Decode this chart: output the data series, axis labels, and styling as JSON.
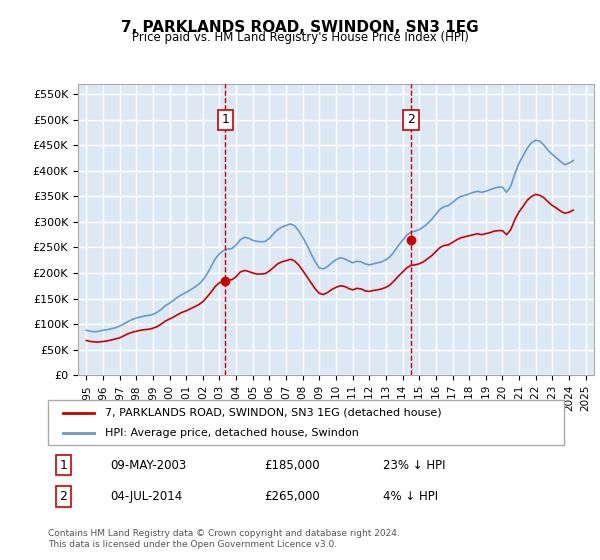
{
  "title": "7, PARKLANDS ROAD, SWINDON, SN3 1EG",
  "subtitle": "Price paid vs. HM Land Registry's House Price Index (HPI)",
  "ylabel_ticks": [
    "£0",
    "£50K",
    "£100K",
    "£150K",
    "£200K",
    "£250K",
    "£300K",
    "£350K",
    "£400K",
    "£450K",
    "£500K",
    "£550K"
  ],
  "ylim": [
    0,
    570000
  ],
  "yticks": [
    0,
    50000,
    100000,
    150000,
    200000,
    250000,
    300000,
    350000,
    400000,
    450000,
    500000,
    550000
  ],
  "xlim_start": 1994.5,
  "xlim_end": 2025.5,
  "background_color": "#dce9f5",
  "plot_bg_color": "#dce9f5",
  "grid_color": "#ffffff",
  "red_color": "#cc0000",
  "blue_color": "#6699cc",
  "transaction1_x": 2003.36,
  "transaction1_y": 185000,
  "transaction2_x": 2014.5,
  "transaction2_y": 265000,
  "legend_label_red": "7, PARKLANDS ROAD, SWINDON, SN3 1EG (detached house)",
  "legend_label_blue": "HPI: Average price, detached house, Swindon",
  "annotation1_label": "1",
  "annotation1_date": "09-MAY-2003",
  "annotation1_price": "£185,000",
  "annotation1_hpi": "23% ↓ HPI",
  "annotation2_label": "2",
  "annotation2_date": "04-JUL-2014",
  "annotation2_price": "£265,000",
  "annotation2_hpi": "4% ↓ HPI",
  "footer": "Contains HM Land Registry data © Crown copyright and database right 2024.\nThis data is licensed under the Open Government Licence v3.0.",
  "hpi_data": {
    "years": [
      1995.0,
      1995.25,
      1995.5,
      1995.75,
      1996.0,
      1996.25,
      1996.5,
      1996.75,
      1997.0,
      1997.25,
      1997.5,
      1997.75,
      1998.0,
      1998.25,
      1998.5,
      1998.75,
      1999.0,
      1999.25,
      1999.5,
      1999.75,
      2000.0,
      2000.25,
      2000.5,
      2000.75,
      2001.0,
      2001.25,
      2001.5,
      2001.75,
      2002.0,
      2002.25,
      2002.5,
      2002.75,
      2003.0,
      2003.25,
      2003.5,
      2003.75,
      2004.0,
      2004.25,
      2004.5,
      2004.75,
      2005.0,
      2005.25,
      2005.5,
      2005.75,
      2006.0,
      2006.25,
      2006.5,
      2006.75,
      2007.0,
      2007.25,
      2007.5,
      2007.75,
      2008.0,
      2008.25,
      2008.5,
      2008.75,
      2009.0,
      2009.25,
      2009.5,
      2009.75,
      2010.0,
      2010.25,
      2010.5,
      2010.75,
      2011.0,
      2011.25,
      2011.5,
      2011.75,
      2012.0,
      2012.25,
      2012.5,
      2012.75,
      2013.0,
      2013.25,
      2013.5,
      2013.75,
      2014.0,
      2014.25,
      2014.5,
      2014.75,
      2015.0,
      2015.25,
      2015.5,
      2015.75,
      2016.0,
      2016.25,
      2016.5,
      2016.75,
      2017.0,
      2017.25,
      2017.5,
      2017.75,
      2018.0,
      2018.25,
      2018.5,
      2018.75,
      2019.0,
      2019.25,
      2019.5,
      2019.75,
      2020.0,
      2020.25,
      2020.5,
      2020.75,
      2021.0,
      2021.25,
      2021.5,
      2021.75,
      2022.0,
      2022.25,
      2022.5,
      2022.75,
      2023.0,
      2023.25,
      2023.5,
      2023.75,
      2024.0,
      2024.25
    ],
    "values": [
      88000,
      86000,
      85000,
      86000,
      88000,
      89000,
      91000,
      93000,
      96000,
      100000,
      105000,
      109000,
      112000,
      114000,
      116000,
      117000,
      119000,
      123000,
      129000,
      136000,
      141000,
      147000,
      153000,
      158000,
      162000,
      167000,
      172000,
      178000,
      186000,
      198000,
      213000,
      228000,
      238000,
      244000,
      247000,
      248000,
      255000,
      265000,
      270000,
      268000,
      264000,
      262000,
      261000,
      262000,
      268000,
      277000,
      285000,
      290000,
      293000,
      296000,
      293000,
      283000,
      270000,
      255000,
      238000,
      222000,
      210000,
      208000,
      213000,
      220000,
      226000,
      230000,
      228000,
      224000,
      220000,
      223000,
      222000,
      218000,
      216000,
      218000,
      220000,
      222000,
      226000,
      232000,
      242000,
      254000,
      264000,
      274000,
      280000,
      282000,
      285000,
      290000,
      297000,
      305000,
      315000,
      325000,
      330000,
      332000,
      338000,
      345000,
      350000,
      352000,
      355000,
      358000,
      360000,
      358000,
      360000,
      363000,
      366000,
      368000,
      368000,
      358000,
      370000,
      395000,
      415000,
      430000,
      445000,
      455000,
      460000,
      458000,
      450000,
      440000,
      432000,
      425000,
      418000,
      412000,
      415000,
      420000
    ]
  },
  "red_data": {
    "years": [
      1995.0,
      1995.25,
      1995.5,
      1995.75,
      1996.0,
      1996.25,
      1996.5,
      1996.75,
      1997.0,
      1997.25,
      1997.5,
      1997.75,
      1998.0,
      1998.25,
      1998.5,
      1998.75,
      1999.0,
      1999.25,
      1999.5,
      1999.75,
      2000.0,
      2000.25,
      2000.5,
      2000.75,
      2001.0,
      2001.25,
      2001.5,
      2001.75,
      2002.0,
      2002.25,
      2002.5,
      2002.75,
      2003.0,
      2003.25,
      2003.5,
      2003.75,
      2004.0,
      2004.25,
      2004.5,
      2004.75,
      2005.0,
      2005.25,
      2005.5,
      2005.75,
      2006.0,
      2006.25,
      2006.5,
      2006.75,
      2007.0,
      2007.25,
      2007.5,
      2007.75,
      2008.0,
      2008.25,
      2008.5,
      2008.75,
      2009.0,
      2009.25,
      2009.5,
      2009.75,
      2010.0,
      2010.25,
      2010.5,
      2010.75,
      2011.0,
      2011.25,
      2011.5,
      2011.75,
      2012.0,
      2012.25,
      2012.5,
      2012.75,
      2013.0,
      2013.25,
      2013.5,
      2013.75,
      2014.0,
      2014.25,
      2014.5,
      2014.75,
      2015.0,
      2015.25,
      2015.5,
      2015.75,
      2016.0,
      2016.25,
      2016.5,
      2016.75,
      2017.0,
      2017.25,
      2017.5,
      2017.75,
      2018.0,
      2018.25,
      2018.5,
      2018.75,
      2019.0,
      2019.25,
      2019.5,
      2019.75,
      2020.0,
      2020.25,
      2020.5,
      2020.75,
      2021.0,
      2021.25,
      2021.5,
      2021.75,
      2022.0,
      2022.25,
      2022.5,
      2022.75,
      2023.0,
      2023.25,
      2023.5,
      2023.75,
      2024.0,
      2024.25
    ],
    "values": [
      68000,
      66000,
      65000,
      65000,
      66000,
      67000,
      69000,
      71000,
      73000,
      77000,
      81000,
      84000,
      86000,
      88000,
      89000,
      90000,
      92000,
      95000,
      100000,
      106000,
      110000,
      114000,
      119000,
      123000,
      126000,
      130000,
      134000,
      138000,
      144000,
      153000,
      163000,
      174000,
      181000,
      185000,
      186000,
      187000,
      193000,
      202000,
      205000,
      203000,
      200000,
      198000,
      198000,
      199000,
      204000,
      211000,
      218000,
      222000,
      224000,
      227000,
      224000,
      216000,
      205000,
      193000,
      181000,
      169000,
      160000,
      158000,
      162000,
      168000,
      172000,
      175000,
      174000,
      170000,
      167000,
      170000,
      169000,
      165000,
      164000,
      166000,
      167000,
      169000,
      172000,
      177000,
      185000,
      194000,
      202000,
      210000,
      215000,
      216000,
      218000,
      222000,
      228000,
      234000,
      242000,
      250000,
      254000,
      255000,
      260000,
      265000,
      269000,
      271000,
      273000,
      275000,
      277000,
      275000,
      277000,
      279000,
      282000,
      283000,
      283000,
      275000,
      285000,
      305000,
      320000,
      331000,
      343000,
      350000,
      354000,
      352000,
      347000,
      339000,
      332000,
      327000,
      321000,
      317000,
      319000,
      323000
    ]
  }
}
